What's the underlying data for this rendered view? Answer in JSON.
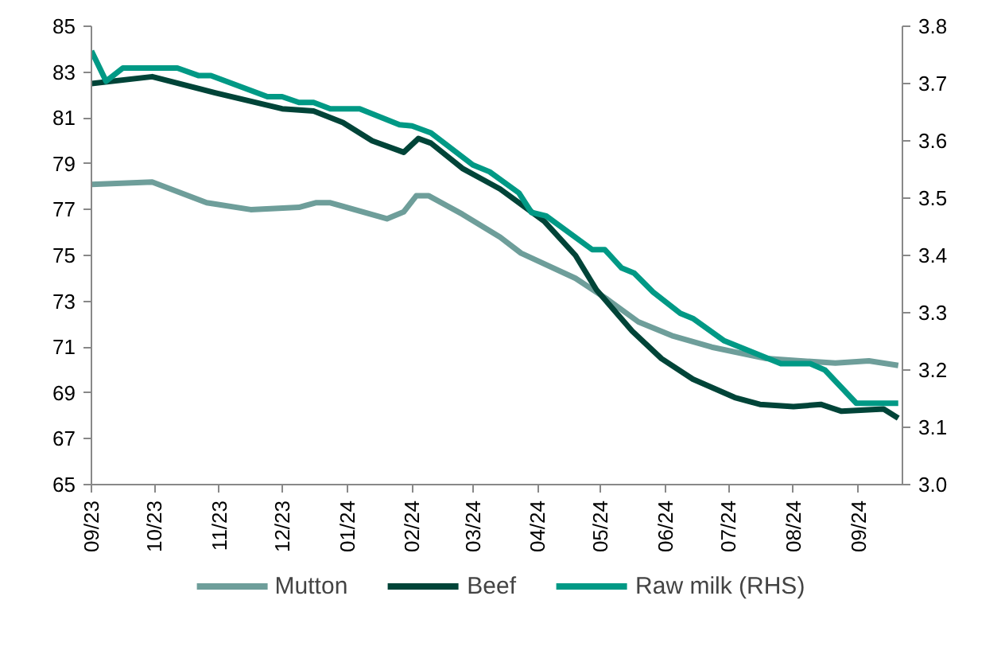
{
  "chart_data": {
    "type": "line",
    "x": [
      "2023-09-01",
      "2023-09-30",
      "2023-10-26",
      "2023-11-16",
      "2023-12-09",
      "2023-12-17",
      "2023-12-24",
      "2024-01-20",
      "2024-01-28",
      "2024-02-03",
      "2024-02-09",
      "2024-02-25",
      "2024-03-14",
      "2024-03-24",
      "2024-04-19",
      "2024-05-04",
      "2024-05-19",
      "2024-06-04",
      "2024-06-23",
      "2024-07-19",
      "2024-08-21",
      "2024-09-06",
      "2024-09-20"
    ],
    "series": [
      {
        "name": "Mutton",
        "color": "#6e9e9a",
        "values": [
          78.1,
          78.2,
          77.3,
          77.0,
          77.1,
          77.3,
          77.3,
          76.6,
          76.9,
          77.6,
          77.6,
          76.8,
          75.8,
          75.1,
          74.0,
          73.1,
          72.1,
          71.5,
          71.0,
          70.5,
          70.3,
          70.4,
          70.2
        ]
      },
      {
        "name": "Beef",
        "color": "#004438",
        "x": [
          "2023-09-01",
          "2023-09-30",
          "2023-10-30",
          "2023-12-01",
          "2023-12-16",
          "2023-12-30",
          "2024-01-13",
          "2024-01-28",
          "2024-02-04",
          "2024-02-10",
          "2024-02-25",
          "2024-03-06",
          "2024-03-14",
          "2024-04-04",
          "2024-04-19",
          "2024-04-29",
          "2024-05-16",
          "2024-05-30",
          "2024-06-14",
          "2024-07-04",
          "2024-07-16",
          "2024-08-01",
          "2024-08-14",
          "2024-08-24",
          "2024-09-13",
          "2024-09-20"
        ],
        "values": [
          82.5,
          82.8,
          82.1,
          81.4,
          81.3,
          80.8,
          80.0,
          79.5,
          80.1,
          79.9,
          78.8,
          78.3,
          77.9,
          76.5,
          75.0,
          73.5,
          71.7,
          70.5,
          69.6,
          68.8,
          68.5,
          68.4,
          68.5,
          68.2,
          68.3,
          67.9
        ]
      },
      {
        "name": "Raw milk (RHS)",
        "color": "#009985",
        "axis": "y2",
        "x": [
          "2023-09-01",
          "2023-09-08",
          "2023-09-16",
          "2023-10-12",
          "2023-10-22",
          "2023-10-28",
          "2023-11-24",
          "2023-12-01",
          "2023-12-09",
          "2023-12-16",
          "2023-12-24",
          "2024-01-07",
          "2024-01-26",
          "2024-02-01",
          "2024-02-10",
          "2024-03-01",
          "2024-03-09",
          "2024-03-23",
          "2024-03-29",
          "2024-04-05",
          "2024-04-27",
          "2024-05-03",
          "2024-05-11",
          "2024-05-17",
          "2024-05-26",
          "2024-06-08",
          "2024-06-14",
          "2024-06-29",
          "2024-07-26",
          "2024-08-09",
          "2024-08-16",
          "2024-08-31",
          "2024-09-20"
        ],
        "values": [
          3.757,
          3.704,
          3.727,
          3.727,
          3.714,
          3.714,
          3.677,
          3.677,
          3.667,
          3.667,
          3.656,
          3.656,
          3.628,
          3.626,
          3.614,
          3.558,
          3.546,
          3.509,
          3.475,
          3.469,
          3.41,
          3.41,
          3.378,
          3.369,
          3.336,
          3.299,
          3.29,
          3.251,
          3.211,
          3.211,
          3.2,
          3.142,
          3.142
        ]
      }
    ],
    "xlim": [
      "2023-09-01",
      "2024-09-22"
    ],
    "xticks": [
      {
        "value": "2023-09-01",
        "label": "09/23"
      },
      {
        "value": "2023-10-01",
        "label": "10/23"
      },
      {
        "value": "2023-11-01",
        "label": "11/23"
      },
      {
        "value": "2023-12-01",
        "label": "12/23"
      },
      {
        "value": "2024-01-01",
        "label": "01/24"
      },
      {
        "value": "2024-02-01",
        "label": "02/24"
      },
      {
        "value": "2024-03-01",
        "label": "03/24"
      },
      {
        "value": "2024-04-01",
        "label": "04/24"
      },
      {
        "value": "2024-05-01",
        "label": "05/24"
      },
      {
        "value": "2024-06-01",
        "label": "06/24"
      },
      {
        "value": "2024-07-01",
        "label": "07/24"
      },
      {
        "value": "2024-08-01",
        "label": "08/24"
      },
      {
        "value": "2024-09-01",
        "label": "09/24"
      }
    ],
    "ylim": [
      65,
      85
    ],
    "yticks": [
      65,
      67,
      69,
      71,
      73,
      75,
      77,
      79,
      81,
      83,
      85
    ],
    "y2lim": [
      3.0,
      3.8
    ],
    "y2ticks": [
      {
        "value": 3.0,
        "label": "3.0"
      },
      {
        "value": 3.1,
        "label": "3.1"
      },
      {
        "value": 3.2,
        "label": "3.2"
      },
      {
        "value": 3.3,
        "label": "3.3"
      },
      {
        "value": 3.4,
        "label": "3.4"
      },
      {
        "value": 3.5,
        "label": "3.5"
      },
      {
        "value": 3.6,
        "label": "3.6"
      },
      {
        "value": 3.7,
        "label": "3.7"
      },
      {
        "value": 3.8,
        "label": "3.8"
      }
    ],
    "grid": false,
    "legend": "bottom",
    "line_style": "solid"
  }
}
